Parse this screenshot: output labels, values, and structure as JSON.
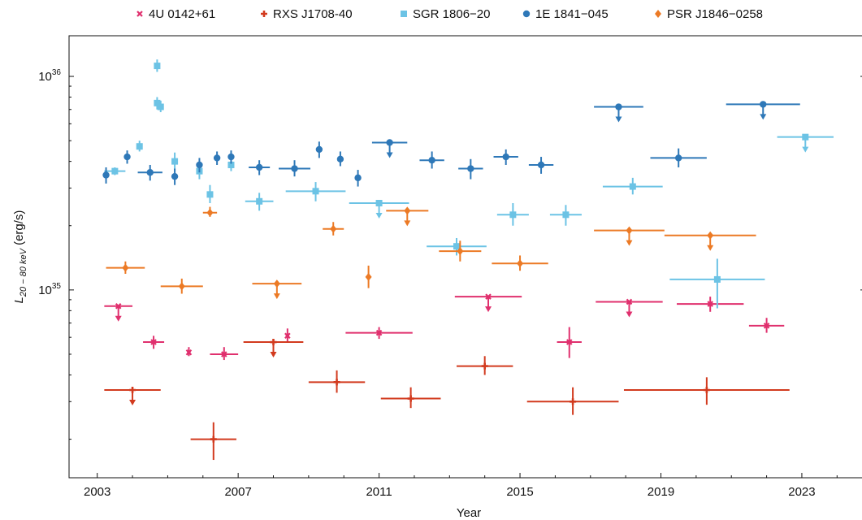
{
  "chart_data": {
    "type": "scatter",
    "xlabel": "Year",
    "ylabel": "L20 − 80 keV (erg/s)",
    "ylabel_parts": {
      "main": "L",
      "sub": "20 − 80 keV",
      "unit": " (erg/s)"
    },
    "xlim": [
      2002.2,
      2024.8
    ],
    "ylim": [
      1.32e+34,
      1.55e+36
    ],
    "yscale": "log",
    "xticks": [
      2003,
      2007,
      2011,
      2015,
      2019,
      2023
    ],
    "xtick_labels": [
      "2003",
      "2007",
      "2011",
      "2015",
      "2019",
      "2023"
    ],
    "yticks": [
      1e+35,
      1e+36
    ],
    "ytick_labels": [
      {
        "base": "10",
        "exp": "35"
      },
      {
        "base": "10",
        "exp": "36"
      }
    ],
    "legend_position": "top",
    "series": [
      {
        "name": "4U 0142+61",
        "color": "#e0306e",
        "marker": "x",
        "points": [
          {
            "x": 2003.6,
            "xerr": 0.4,
            "y": 8.4e+34,
            "ylo": 8e+34,
            "yhi": 8.8e+34,
            "upper_limit": true
          },
          {
            "x": 2004.6,
            "xerr": 0.3,
            "y": 5.7e+34,
            "ylo": 5.3e+34,
            "yhi": 6.1e+34
          },
          {
            "x": 2005.6,
            "xerr": 0.05,
            "y": 5.1e+34,
            "ylo": 4.9e+34,
            "yhi": 5.4e+34
          },
          {
            "x": 2006.6,
            "xerr": 0.4,
            "y": 5e+34,
            "ylo": 4.7e+34,
            "yhi": 5.4e+34
          },
          {
            "x": 2008.4,
            "xerr": 0.05,
            "y": 6.1e+34,
            "ylo": 5.7e+34,
            "yhi": 6.6e+34
          },
          {
            "x": 2011.0,
            "xerr": 0.95,
            "y": 6.3e+34,
            "ylo": 5.9e+34,
            "yhi": 6.7e+34
          },
          {
            "x": 2014.1,
            "xerr": 0.95,
            "y": 9.3e+34,
            "ylo": 8.9e+34,
            "yhi": 9.7e+34,
            "upper_limit": true
          },
          {
            "x": 2016.4,
            "xerr": 0.35,
            "y": 5.7e+34,
            "ylo": 4.8e+34,
            "yhi": 6.7e+34
          },
          {
            "x": 2018.1,
            "xerr": 0.95,
            "y": 8.8e+34,
            "ylo": 8.4e+34,
            "yhi": 9.2e+34,
            "upper_limit": true
          },
          {
            "x": 2020.4,
            "xerr": 0.95,
            "y": 8.6e+34,
            "ylo": 7.9e+34,
            "yhi": 9.3e+34
          },
          {
            "x": 2022.0,
            "xerr": 0.5,
            "y": 6.8e+34,
            "ylo": 6.3e+34,
            "yhi": 7.4e+34
          }
        ]
      },
      {
        "name": "RXS J1708-40",
        "color": "#d23a1e",
        "marker": "plus",
        "points": [
          {
            "x": 2004.0,
            "xerr": 0.8,
            "y": 3.4e+34,
            "ylo": 3.2e+34,
            "yhi": 3.6e+34,
            "upper_limit": true
          },
          {
            "x": 2006.3,
            "xerr": 0.65,
            "y": 2e+34,
            "ylo": 1.6e+34,
            "yhi": 2.4e+34
          },
          {
            "x": 2008.0,
            "xerr": 0.85,
            "y": 5.7e+34,
            "ylo": 5.5e+34,
            "yhi": 5.9e+34,
            "upper_limit": true
          },
          {
            "x": 2009.8,
            "xerr": 0.8,
            "y": 3.7e+34,
            "ylo": 3.3e+34,
            "yhi": 4.2e+34
          },
          {
            "x": 2011.9,
            "xerr": 0.85,
            "y": 3.1e+34,
            "ylo": 2.8e+34,
            "yhi": 3.5e+34
          },
          {
            "x": 2014.0,
            "xerr": 0.8,
            "y": 4.4e+34,
            "ylo": 4e+34,
            "yhi": 4.9e+34
          },
          {
            "x": 2016.5,
            "xerr": 1.3,
            "y": 3e+34,
            "ylo": 2.6e+34,
            "yhi": 3.5e+34
          },
          {
            "x": 2020.3,
            "xerr": 2.35,
            "y": 3.4e+34,
            "ylo": 2.9e+34,
            "yhi": 3.9e+34
          }
        ]
      },
      {
        "name": "SGR 1806−20",
        "color": "#6cc3e5",
        "marker": "square",
        "points": [
          {
            "x": 2003.5,
            "xerr": 0.3,
            "y": 3.6e+35,
            "ylo": 3.45e+35,
            "yhi": 3.75e+35
          },
          {
            "x": 2004.2,
            "xerr": 0.05,
            "y": 4.7e+35,
            "ylo": 4.45e+35,
            "yhi": 5e+35
          },
          {
            "x": 2004.7,
            "xerr": 0.05,
            "y": 1.12e+36,
            "ylo": 1.05e+36,
            "yhi": 1.2e+36
          },
          {
            "x": 2004.7,
            "xerr": 0.05,
            "y": 7.5e+35,
            "ylo": 7e+35,
            "yhi": 8e+35
          },
          {
            "x": 2004.8,
            "xerr": 0.05,
            "y": 7.2e+35,
            "ylo": 6.8e+35,
            "yhi": 7.7e+35
          },
          {
            "x": 2005.2,
            "xerr": 0.05,
            "y": 4e+35,
            "ylo": 3.6e+35,
            "yhi": 4.4e+35
          },
          {
            "x": 2005.9,
            "xerr": 0.05,
            "y": 3.6e+35,
            "ylo": 3.3e+35,
            "yhi": 3.9e+35
          },
          {
            "x": 2006.2,
            "xerr": 0.05,
            "y": 2.8e+35,
            "ylo": 2.55e+35,
            "yhi": 3.1e+35
          },
          {
            "x": 2006.8,
            "xerr": 0.05,
            "y": 3.85e+35,
            "ylo": 3.6e+35,
            "yhi": 4.1e+35
          },
          {
            "x": 2007.6,
            "xerr": 0.4,
            "y": 2.6e+35,
            "ylo": 2.35e+35,
            "yhi": 2.85e+35
          },
          {
            "x": 2009.2,
            "xerr": 0.85,
            "y": 2.9e+35,
            "ylo": 2.6e+35,
            "yhi": 3.2e+35
          },
          {
            "x": 2011.0,
            "xerr": 0.85,
            "y": 2.55e+35,
            "ylo": 2.45e+35,
            "yhi": 2.65e+35,
            "upper_limit": true
          },
          {
            "x": 2013.2,
            "xerr": 0.85,
            "y": 1.6e+35,
            "ylo": 1.45e+35,
            "yhi": 1.75e+35
          },
          {
            "x": 2014.8,
            "xerr": 0.45,
            "y": 2.25e+35,
            "ylo": 2e+35,
            "yhi": 2.55e+35
          },
          {
            "x": 2016.3,
            "xerr": 0.45,
            "y": 2.25e+35,
            "ylo": 2e+35,
            "yhi": 2.5e+35
          },
          {
            "x": 2018.2,
            "xerr": 0.85,
            "y": 3.05e+35,
            "ylo": 2.8e+35,
            "yhi": 3.35e+35
          },
          {
            "x": 2020.6,
            "xerr": 1.35,
            "y": 1.12e+35,
            "ylo": 8.2e+34,
            "yhi": 1.4e+35
          },
          {
            "x": 2023.1,
            "xerr": 0.8,
            "y": 5.2e+35,
            "ylo": 5e+35,
            "yhi": 5.4e+35,
            "upper_limit": true
          }
        ]
      },
      {
        "name": "1E 1841−045",
        "color": "#2e78b8",
        "marker": "circle",
        "points": [
          {
            "x": 2003.25,
            "xerr": 0.05,
            "y": 3.45e+35,
            "ylo": 3.15e+35,
            "yhi": 3.75e+35
          },
          {
            "x": 2003.85,
            "xerr": 0.05,
            "y": 4.2e+35,
            "ylo": 3.9e+35,
            "yhi": 4.5e+35
          },
          {
            "x": 2004.5,
            "xerr": 0.35,
            "y": 3.55e+35,
            "ylo": 3.25e+35,
            "yhi": 3.85e+35
          },
          {
            "x": 2005.2,
            "xerr": 0.05,
            "y": 3.4e+35,
            "ylo": 3.1e+35,
            "yhi": 3.7e+35
          },
          {
            "x": 2005.9,
            "xerr": 0.05,
            "y": 3.85e+35,
            "ylo": 3.55e+35,
            "yhi": 4.15e+35
          },
          {
            "x": 2006.4,
            "xerr": 0.05,
            "y": 4.15e+35,
            "ylo": 3.85e+35,
            "yhi": 4.45e+35
          },
          {
            "x": 2006.8,
            "xerr": 0.05,
            "y": 4.2e+35,
            "ylo": 3.9e+35,
            "yhi": 4.5e+35
          },
          {
            "x": 2007.6,
            "xerr": 0.3,
            "y": 3.75e+35,
            "ylo": 3.45e+35,
            "yhi": 4.05e+35
          },
          {
            "x": 2008.6,
            "xerr": 0.45,
            "y": 3.7e+35,
            "ylo": 3.4e+35,
            "yhi": 4.05e+35
          },
          {
            "x": 2009.3,
            "xerr": 0.05,
            "y": 4.55e+35,
            "ylo": 4.15e+35,
            "yhi": 4.95e+35
          },
          {
            "x": 2009.9,
            "xerr": 0.05,
            "y": 4.1e+35,
            "ylo": 3.8e+35,
            "yhi": 4.45e+35
          },
          {
            "x": 2010.4,
            "xerr": 0.05,
            "y": 3.35e+35,
            "ylo": 3.05e+35,
            "yhi": 3.65e+35
          },
          {
            "x": 2011.3,
            "xerr": 0.5,
            "y": 4.9e+35,
            "ylo": 4.7e+35,
            "yhi": 5.1e+35,
            "upper_limit": true
          },
          {
            "x": 2012.5,
            "xerr": 0.35,
            "y": 4.05e+35,
            "ylo": 3.7e+35,
            "yhi": 4.45e+35
          },
          {
            "x": 2013.6,
            "xerr": 0.35,
            "y": 3.7e+35,
            "ylo": 3.3e+35,
            "yhi": 4.1e+35
          },
          {
            "x": 2014.6,
            "xerr": 0.35,
            "y": 4.2e+35,
            "ylo": 3.85e+35,
            "yhi": 4.55e+35
          },
          {
            "x": 2015.6,
            "xerr": 0.35,
            "y": 3.85e+35,
            "ylo": 3.5e+35,
            "yhi": 4.2e+35
          },
          {
            "x": 2017.8,
            "xerr": 0.7,
            "y": 7.2e+35,
            "ylo": 6.9e+35,
            "yhi": 7.5e+35,
            "upper_limit": true
          },
          {
            "x": 2019.5,
            "xerr": 0.8,
            "y": 4.15e+35,
            "ylo": 3.75e+35,
            "yhi": 4.6e+35
          },
          {
            "x": 2021.9,
            "xerr": 1.05,
            "y": 7.4e+35,
            "ylo": 7.1e+35,
            "yhi": 7.7e+35,
            "upper_limit": true
          }
        ]
      },
      {
        "name": "PSR J1846−0258",
        "color": "#ec7a25",
        "marker": "diamond",
        "points": [
          {
            "x": 2003.8,
            "xerr": 0.55,
            "y": 1.27e+35,
            "ylo": 1.19e+35,
            "yhi": 1.36e+35
          },
          {
            "x": 2005.4,
            "xerr": 0.6,
            "y": 1.04e+35,
            "ylo": 9.6e+34,
            "yhi": 1.13e+35
          },
          {
            "x": 2006.2,
            "xerr": 0.2,
            "y": 2.3e+35,
            "ylo": 2.2e+35,
            "yhi": 2.45e+35
          },
          {
            "x": 2008.1,
            "xerr": 0.7,
            "y": 1.07e+35,
            "ylo": 1.02e+35,
            "yhi": 1.12e+35,
            "upper_limit": true
          },
          {
            "x": 2009.7,
            "xerr": 0.3,
            "y": 1.93e+35,
            "ylo": 1.8e+35,
            "yhi": 2.08e+35
          },
          {
            "x": 2010.7,
            "xerr": 0.05,
            "y": 1.15e+35,
            "ylo": 1.02e+35,
            "yhi": 1.3e+35
          },
          {
            "x": 2011.8,
            "xerr": 0.6,
            "y": 2.35e+35,
            "ylo": 2.25e+35,
            "yhi": 2.45e+35,
            "upper_limit": true
          },
          {
            "x": 2013.3,
            "xerr": 0.6,
            "y": 1.52e+35,
            "ylo": 1.36e+35,
            "yhi": 1.7e+35
          },
          {
            "x": 2015.0,
            "xerr": 0.8,
            "y": 1.33e+35,
            "ylo": 1.23e+35,
            "yhi": 1.45e+35
          },
          {
            "x": 2018.1,
            "xerr": 1.0,
            "y": 1.9e+35,
            "ylo": 1.8e+35,
            "yhi": 2e+35,
            "upper_limit": true
          },
          {
            "x": 2020.4,
            "xerr": 1.3,
            "y": 1.8e+35,
            "ylo": 1.72e+35,
            "yhi": 1.88e+35,
            "upper_limit": true
          }
        ]
      }
    ]
  }
}
